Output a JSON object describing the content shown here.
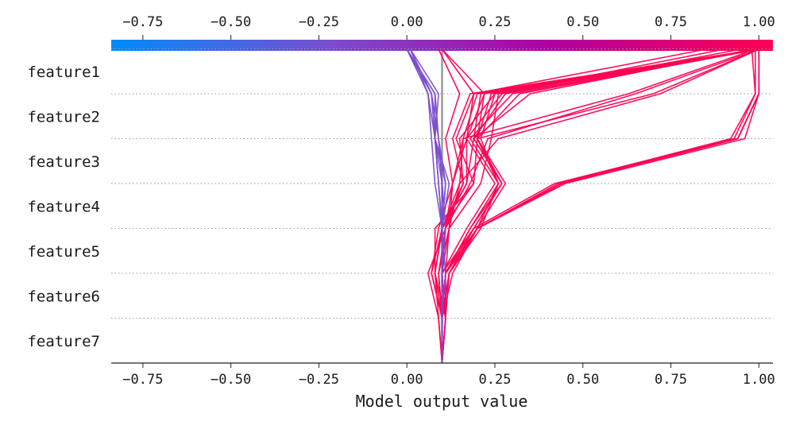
{
  "chart_data": {
    "type": "line",
    "title": "",
    "xlabel": "Model output value",
    "ylabel": "",
    "xlim": [
      -0.84,
      1.04
    ],
    "x_ticks": [
      -0.75,
      -0.5,
      -0.25,
      0.0,
      0.25,
      0.5,
      0.75,
      1.0
    ],
    "x_tick_labels": [
      "−0.75",
      "−0.50",
      "−0.25",
      "0.00",
      "0.25",
      "0.50",
      "0.75",
      "1.00"
    ],
    "features": [
      "feature1",
      "feature2",
      "feature3",
      "feature4",
      "feature5",
      "feature6",
      "feature7"
    ],
    "base_value": 0.1,
    "colorbar": {
      "min": -0.84,
      "max": 1.04,
      "colors": [
        "#008bfb",
        "#7a4ccf",
        "#b000a0",
        "#ff0052"
      ]
    },
    "grid": "dotted horizontal lines between features",
    "series_note": "each path lists cumulative model output from feature7 (bottom) up to feature1 (top); first point is the base value",
    "series": [
      {
        "color": "#ff0052",
        "values": [
          0.1,
          0.1,
          0.11,
          0.2,
          0.44,
          0.94,
          1.0,
          1.0
        ]
      },
      {
        "color": "#ff0052",
        "values": [
          0.1,
          0.1,
          0.11,
          0.2,
          0.44,
          0.94,
          1.0,
          1.0
        ]
      },
      {
        "color": "#ff0052",
        "values": [
          0.1,
          0.1,
          0.11,
          0.2,
          0.43,
          0.92,
          0.99,
          0.99
        ]
      },
      {
        "color": "#ff0052",
        "values": [
          0.1,
          0.1,
          0.12,
          0.2,
          0.45,
          0.96,
          1.0,
          1.0
        ]
      },
      {
        "color": "#ff0052",
        "values": [
          0.1,
          0.1,
          0.1,
          0.19,
          0.42,
          0.93,
          0.99,
          0.98
        ]
      },
      {
        "color": "#ff0052",
        "values": [
          0.1,
          0.1,
          0.11,
          0.2,
          0.44,
          0.94,
          1.0,
          1.0
        ]
      },
      {
        "color": "#ff0052",
        "values": [
          0.1,
          0.11,
          0.12,
          0.19,
          0.27,
          0.19,
          0.28,
          1.0
        ]
      },
      {
        "color": "#ff0052",
        "values": [
          0.1,
          0.1,
          0.11,
          0.18,
          0.26,
          0.18,
          0.3,
          1.0
        ]
      },
      {
        "color": "#ff0052",
        "values": [
          0.1,
          0.1,
          0.12,
          0.2,
          0.26,
          0.2,
          0.22,
          1.0
        ]
      },
      {
        "color": "#ff0052",
        "values": [
          0.1,
          0.11,
          0.11,
          0.19,
          0.27,
          0.19,
          0.35,
          0.98
        ]
      },
      {
        "color": "#ff0052",
        "values": [
          0.1,
          0.1,
          0.12,
          0.21,
          0.26,
          0.21,
          0.25,
          1.0
        ]
      },
      {
        "color": "#ff0052",
        "values": [
          0.1,
          0.11,
          0.1,
          0.17,
          0.25,
          0.17,
          0.27,
          0.95
        ]
      },
      {
        "color": "#ff0052",
        "values": [
          0.1,
          0.1,
          0.13,
          0.2,
          0.28,
          0.2,
          0.24,
          1.0
        ]
      },
      {
        "color": "#ff0052",
        "values": [
          0.1,
          0.1,
          0.11,
          0.18,
          0.27,
          0.2,
          0.32,
          1.0
        ]
      },
      {
        "color": "#ff0052",
        "values": [
          0.1,
          0.1,
          0.07,
          0.09,
          0.13,
          0.16,
          0.63,
          0.99
        ]
      },
      {
        "color": "#ff0052",
        "values": [
          0.1,
          0.1,
          0.09,
          0.11,
          0.18,
          0.23,
          0.65,
          1.0
        ]
      },
      {
        "color": "#ff0052",
        "values": [
          0.1,
          0.11,
          0.08,
          0.1,
          0.19,
          0.2,
          0.7,
          1.0
        ]
      },
      {
        "color": "#ff0052",
        "values": [
          0.1,
          0.1,
          0.09,
          0.12,
          0.15,
          0.26,
          0.72,
          1.0
        ]
      },
      {
        "color": "#ff0052",
        "values": [
          0.1,
          0.09,
          0.08,
          0.1,
          0.16,
          0.13,
          0.18,
          1.0
        ]
      },
      {
        "color": "#ff0052",
        "values": [
          0.1,
          0.09,
          0.06,
          0.11,
          0.16,
          0.15,
          0.25,
          1.0
        ]
      },
      {
        "color": "#ff0052",
        "values": [
          0.1,
          0.1,
          0.1,
          0.1,
          0.15,
          0.16,
          0.2,
          1.0
        ]
      },
      {
        "color": "#ff0052",
        "values": [
          0.1,
          0.1,
          0.1,
          0.1,
          0.17,
          0.19,
          0.21,
          1.0
        ]
      },
      {
        "color": "#ff0052",
        "values": [
          0.1,
          0.1,
          0.08,
          0.08,
          0.19,
          0.14,
          0.19,
          0.85
        ]
      },
      {
        "color": "#ff0052",
        "values": [
          0.1,
          0.1,
          0.1,
          0.12,
          0.21,
          0.24,
          0.26,
          0.9
        ]
      },
      {
        "color": "#ff0052",
        "values": [
          0.1,
          0.1,
          0.07,
          0.1,
          0.17,
          0.17,
          0.22,
          0.1
        ]
      },
      {
        "color": "#ff0052",
        "values": [
          0.1,
          0.1,
          0.1,
          0.11,
          0.13,
          0.17,
          0.19,
          0.1
        ]
      },
      {
        "color": "#ff0052",
        "values": [
          0.1,
          0.1,
          0.11,
          0.12,
          0.13,
          0.11,
          0.15,
          0.09
        ]
      },
      {
        "color": "#7a4ccf",
        "values": [
          0.1,
          0.1,
          0.1,
          0.1,
          0.09,
          0.08,
          0.07,
          0.0
        ]
      },
      {
        "color": "#7a4ccf",
        "values": [
          0.1,
          0.1,
          0.1,
          0.11,
          0.1,
          0.08,
          0.07,
          0.01
        ]
      },
      {
        "color": "#7a4ccf",
        "values": [
          0.1,
          0.1,
          0.1,
          0.1,
          0.11,
          0.09,
          0.07,
          0.0
        ]
      },
      {
        "color": "#7a4ccf",
        "values": [
          0.1,
          0.1,
          0.1,
          0.1,
          0.12,
          0.08,
          0.08,
          0.0
        ]
      },
      {
        "color": "#7a4ccf",
        "values": [
          0.1,
          0.1,
          0.1,
          0.1,
          0.08,
          0.07,
          0.06,
          0.0
        ]
      },
      {
        "color": "#7a4ccf",
        "values": [
          0.1,
          0.1,
          0.1,
          0.1,
          0.09,
          0.08,
          0.09,
          0.01
        ]
      },
      {
        "color": "#7a4ccf",
        "values": [
          0.1,
          0.1,
          0.1,
          0.1,
          0.1,
          0.09,
          0.08,
          0.0
        ]
      },
      {
        "color": "#7a4ccf",
        "values": [
          0.1,
          0.1,
          0.11,
          0.1,
          0.11,
          0.08,
          0.06,
          0.01
        ]
      }
    ]
  }
}
